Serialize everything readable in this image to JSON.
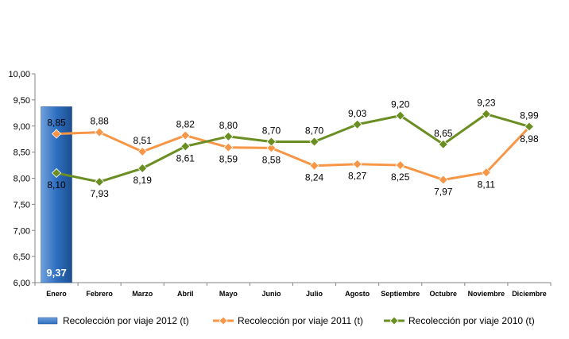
{
  "chart_data": {
    "type": "bar+line",
    "categories": [
      "Enero",
      "Febrero",
      "Marzo",
      "Abril",
      "Mayo",
      "Junio",
      "Julio",
      "Agosto",
      "Septiembre",
      "Octubre",
      "Noviembre",
      "Diciembre"
    ],
    "ylim": [
      6.0,
      10.0
    ],
    "yticks": [
      "6,00",
      "6,50",
      "7,00",
      "7,50",
      "8,00",
      "8,50",
      "9,00",
      "9,50",
      "10,00"
    ],
    "grid": false,
    "legend_position": "bottom",
    "series": [
      {
        "name": "Recolección por viaje 2012 (t)",
        "kind": "bar",
        "color": "#2e6fc0",
        "values": [
          9.37,
          null,
          null,
          null,
          null,
          null,
          null,
          null,
          null,
          null,
          null,
          null
        ],
        "labels": [
          "9,37",
          "",
          "",
          "",
          "",
          "",
          "",
          "",
          "",
          "",
          "",
          ""
        ]
      },
      {
        "name": "Recolección por viaje 2011 (t)",
        "kind": "line",
        "color": "#f79646",
        "values": [
          8.85,
          8.88,
          8.51,
          8.82,
          8.59,
          8.58,
          8.24,
          8.27,
          8.25,
          7.97,
          8.11,
          8.98
        ],
        "labels": [
          "8,85",
          "8,88",
          "8,51",
          "8,82",
          "8,59",
          "8,58",
          "8,24",
          "8,27",
          "8,25",
          "7,97",
          "8,11",
          "8,98"
        ]
      },
      {
        "name": "Recolección por viaje 2010 (t)",
        "kind": "line",
        "color": "#6b8e23",
        "values": [
          8.1,
          7.93,
          8.19,
          8.61,
          8.8,
          8.7,
          8.7,
          9.03,
          9.2,
          8.65,
          9.23,
          8.99
        ],
        "labels": [
          "8,10",
          "7,93",
          "8,19",
          "8,61",
          "8,80",
          "8,70",
          "8,70",
          "9,03",
          "9,20",
          "8,65",
          "9,23",
          "8,99"
        ]
      }
    ]
  }
}
